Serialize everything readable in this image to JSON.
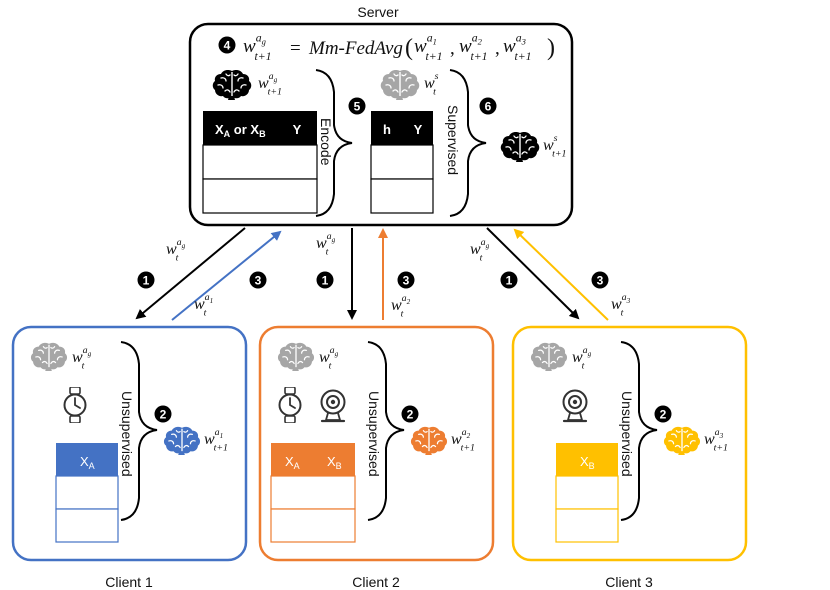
{
  "server": {
    "title": "Server",
    "step_label": "4",
    "formula": {
      "lhs_w": "w",
      "lhs_sup": "a",
      "lhs_supsub": "g",
      "lhs_sub": "t+1",
      "eq": "=",
      "fn": "Mm-FedAvg",
      "args": [
        {
          "w": "w",
          "sup": "a",
          "supsub": "1",
          "sub": "t+1"
        },
        {
          "w": "w",
          "sup": "a",
          "supsub": "2",
          "sub": "t+1"
        },
        {
          "w": "w",
          "sup": "a",
          "supsub": "3",
          "sub": "t+1"
        }
      ],
      "open": "(",
      "close": ")",
      "comma": ","
    },
    "encoder_weight": {
      "w": "w",
      "sup": "a",
      "supsub": "g",
      "sub": "t+1"
    },
    "table_header": "X",
    "table_header_sub_a": "A",
    "table_header_or": " or X",
    "table_header_sub_b": "B",
    "table_header_y": "Y",
    "encode_label": "Encode",
    "step5": "5",
    "h_table_h": "h",
    "h_table_y": "Y",
    "sup_weight": {
      "w": "w",
      "sup": "s",
      "sub": "t"
    },
    "supervised_label": "Supervised",
    "step6": "6",
    "out_weight": {
      "w": "w",
      "sup": "s",
      "sub": "t+1"
    }
  },
  "arrows": [
    {
      "step": "1",
      "weight": {
        "w": "w",
        "sup": "a",
        "supsub": "g",
        "sub": "t"
      }
    },
    {
      "step": "3",
      "weight": {
        "w": "w",
        "sup": "a",
        "supsub": "1",
        "sub": "t"
      }
    },
    {
      "step": "1",
      "weight": {
        "w": "w",
        "sup": "a",
        "supsub": "g",
        "sub": "t"
      }
    },
    {
      "step": "3",
      "weight": {
        "w": "w",
        "sup": "a",
        "supsub": "2",
        "sub": "t"
      }
    },
    {
      "step": "1",
      "weight": {
        "w": "w",
        "sup": "a",
        "supsub": "g",
        "sub": "t"
      }
    },
    {
      "step": "3",
      "weight": {
        "w": "w",
        "sup": "a",
        "supsub": "3",
        "sub": "t"
      }
    }
  ],
  "clients": [
    {
      "name": "Client 1",
      "color": "#4472C4",
      "weight_in": {
        "w": "w",
        "sup": "a",
        "supsub": "g",
        "sub": "t"
      },
      "unsupervised": "Unsupervised",
      "step": "2",
      "weight_out": {
        "w": "w",
        "sup": "a",
        "supsub": "1",
        "sub": "t+1"
      },
      "columns": [
        {
          "x": "X",
          "sub": "A"
        }
      ],
      "icons": [
        "watch-icon"
      ]
    },
    {
      "name": "Client 2",
      "color": "#ED7D31",
      "weight_in": {
        "w": "w",
        "sup": "a",
        "supsub": "g",
        "sub": "t"
      },
      "unsupervised": "Unsupervised",
      "step": "2",
      "weight_out": {
        "w": "w",
        "sup": "a",
        "supsub": "2",
        "sub": "t+1"
      },
      "columns": [
        {
          "x": "X",
          "sub": "A"
        },
        {
          "x": "X",
          "sub": "B"
        }
      ],
      "icons": [
        "watch-icon",
        "camera-icon"
      ]
    },
    {
      "name": "Client 3",
      "color": "#FFC000",
      "weight_in": {
        "w": "w",
        "sup": "a",
        "supsub": "g",
        "sub": "t"
      },
      "unsupervised": "Unsupervised",
      "step": "2",
      "weight_out": {
        "w": "w",
        "sup": "a",
        "supsub": "3",
        "sub": "t+1"
      },
      "columns": [
        {
          "x": "X",
          "sub": "B"
        }
      ],
      "icons": [
        "camera-icon"
      ]
    }
  ],
  "colors": {
    "blue": "#4472C4",
    "orange": "#ED7D31",
    "yellow": "#FFC000",
    "gray": "#A6A6A6",
    "black": "#000000"
  }
}
